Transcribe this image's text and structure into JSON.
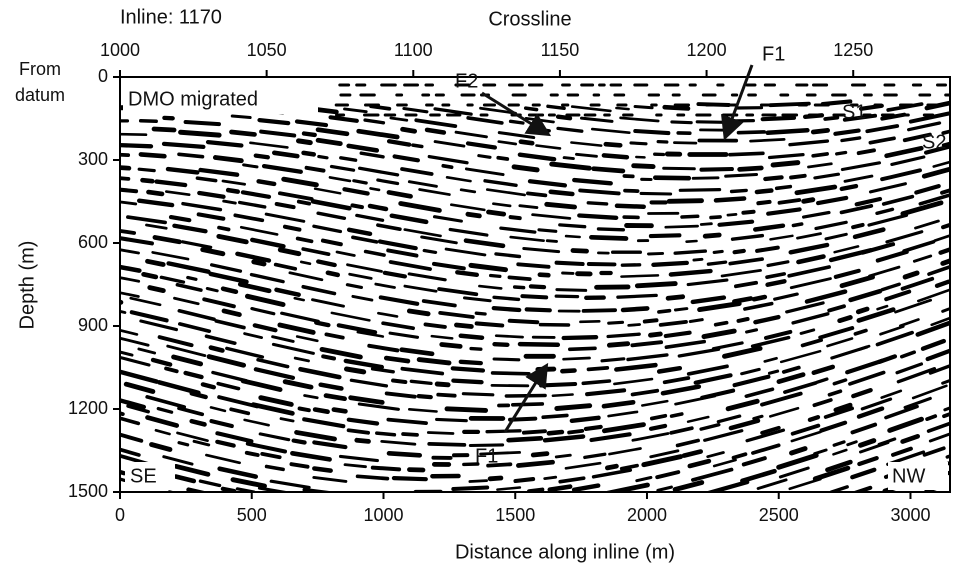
{
  "chart_data": {
    "type": "seismic-section",
    "title": "Inline: 1170",
    "x2_label": "Crossline",
    "y_label": "Depth (m)",
    "y_label_top": [
      "From",
      "datum"
    ],
    "x_label": "Distance along inline (m)",
    "xlim": [
      0,
      3150
    ],
    "xticks": [
      0,
      500,
      1000,
      1500,
      2000,
      2500,
      3000
    ],
    "x2lim": [
      1000,
      1283
    ],
    "x2ticks": [
      1000,
      1050,
      1100,
      1150,
      1200,
      1250
    ],
    "ylim": [
      0,
      1500
    ],
    "yticks": [
      0,
      300,
      600,
      900,
      1200,
      1500
    ],
    "annotations": {
      "panel": "DMO migrated",
      "f2": "F2",
      "f1_top": "F1",
      "f1_bottom": "F1",
      "s1": "S1",
      "s2": "S2",
      "se": "SE",
      "nw": "NW"
    }
  }
}
